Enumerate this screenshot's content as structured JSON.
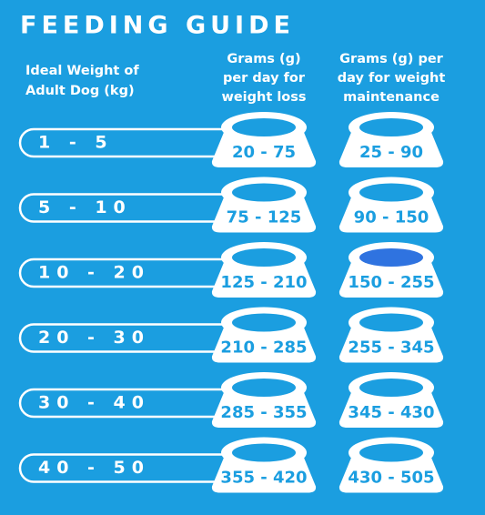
{
  "header": {
    "title": "FEEDING GUIDE"
  },
  "table": {
    "columns": [
      [
        "Ideal Weight of",
        "Adult Dog (kg)"
      ],
      [
        "Grams (g)",
        "per day for",
        "weight loss"
      ],
      [
        "Grams (g) per",
        "day for weight",
        "maintenance"
      ]
    ],
    "rows": [
      [
        "1 - 5",
        "20 - 75",
        "25 - 90"
      ],
      [
        "5 - 10",
        "75 - 125",
        "90 - 150"
      ],
      [
        "10 - 20",
        "125 - 210",
        "150 - 255"
      ],
      [
        "20 - 30",
        "210 - 285",
        "255 - 345"
      ],
      [
        "30 - 40",
        "285 - 355",
        "345 - 430"
      ],
      [
        "40 - 50",
        "355 - 420",
        "430 - 505"
      ]
    ]
  }
}
